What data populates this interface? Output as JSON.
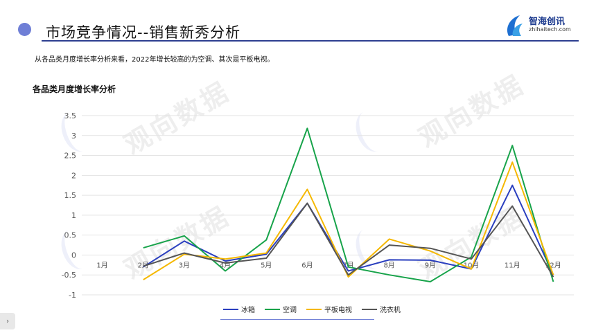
{
  "header": {
    "title": "市场竞争情况--销售新秀分析",
    "logo_text": "智海创讯",
    "logo_sub": "zhihaitech.com"
  },
  "subtitle": "从各品类月度增长率分析来看，2022年增长较高的为空调、其次是平板电视。",
  "watermark": "观向数据",
  "colors": {
    "accent": "#2c3e90",
    "dot": "#6f7fd6"
  },
  "chart_data": {
    "type": "line",
    "title": "各品类月度增长率分析",
    "categories": [
      "1月",
      "2月",
      "3月",
      "4月",
      "5月",
      "6月",
      "7月",
      "8月",
      "9月",
      "10月",
      "11月",
      "12月"
    ],
    "ylim": [
      -1,
      3.5
    ],
    "yticks": [
      3.5,
      3,
      2.5,
      2,
      1.5,
      1,
      0.5,
      0,
      -0.5,
      -1
    ],
    "grid": true,
    "legend_position": "bottom",
    "series": [
      {
        "name": "冰箱",
        "color": "#2a3fbf",
        "values": [
          null,
          -0.3,
          0.35,
          -0.15,
          0.02,
          1.3,
          -0.4,
          -0.12,
          -0.13,
          -0.35,
          1.75,
          -0.5
        ]
      },
      {
        "name": "空调",
        "color": "#17a34a",
        "values": [
          null,
          0.18,
          0.48,
          -0.4,
          0.38,
          3.18,
          -0.3,
          -0.5,
          -0.67,
          -0.05,
          2.75,
          -0.67
        ]
      },
      {
        "name": "平板电视",
        "color": "#f5b800",
        "values": [
          null,
          -0.62,
          0.02,
          -0.1,
          0.05,
          1.65,
          -0.55,
          0.4,
          0.1,
          -0.35,
          2.33,
          -0.5
        ]
      },
      {
        "name": "洗衣机",
        "color": "#555555",
        "values": [
          null,
          -0.28,
          0.05,
          -0.2,
          -0.08,
          1.3,
          -0.5,
          0.25,
          0.17,
          -0.1,
          1.23,
          -0.55
        ]
      }
    ]
  }
}
